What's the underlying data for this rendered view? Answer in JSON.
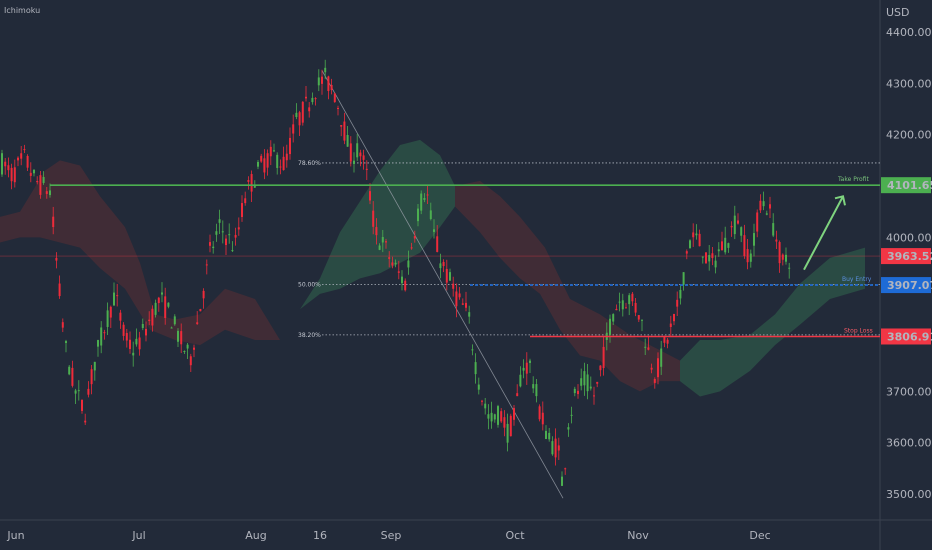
{
  "indicator_label": "Ichimoku",
  "currency": "USD",
  "colors": {
    "background": "#222a39",
    "up": "#4caf50",
    "down": "#ef2b3a",
    "take_profit": "#4caf50",
    "buy_entry": "#1e6bd6",
    "stop_loss": "#f23645",
    "current": "#f23645",
    "cloud_bull": "#2e5a48",
    "cloud_bear": "#5a2e34"
  },
  "chart_data": {
    "type": "candlestick",
    "x_ticks": [
      "Jun",
      "Jul",
      "Aug",
      "16",
      "Sep",
      "Oct",
      "Nov",
      "Dec"
    ],
    "y_ticks": [
      "4400.00",
      "4300.00",
      "4200.00",
      "4000.00",
      "3700.00",
      "3600.00",
      "3500.00"
    ],
    "ylim": [
      3450,
      4470
    ],
    "levels": {
      "take_profit": {
        "label": "Take Profit",
        "value": "4101.65"
      },
      "buy_entry": {
        "label": "Buy Entry",
        "value": "3907.07"
      },
      "stop_loss": {
        "label": "Stop Loss",
        "value": "3806.91"
      },
      "current": {
        "value": "3963.52"
      }
    },
    "fib_levels": [
      {
        "label": "78.60%",
        "value": 4145
      },
      {
        "label": "50.00%",
        "value": 3908
      },
      {
        "label": "38.20%",
        "value": 3810
      }
    ],
    "fib_line": {
      "from": {
        "date": "Aug 18",
        "value": 4325
      },
      "to": {
        "date": "Oct 13",
        "value": 3492
      }
    },
    "arrow": {
      "from": {
        "date": "Dec 2",
        "value": 3937
      },
      "to": {
        "date": "Dec 12",
        "value": 4080
      }
    },
    "price_path": [
      [
        0,
        4150
      ],
      [
        12,
        4120
      ],
      [
        25,
        4155
      ],
      [
        35,
        4110
      ],
      [
        50,
        4090
      ],
      [
        58,
        3920
      ],
      [
        65,
        3790
      ],
      [
        75,
        3700
      ],
      [
        85,
        3660
      ],
      [
        95,
        3760
      ],
      [
        105,
        3830
      ],
      [
        115,
        3890
      ],
      [
        125,
        3800
      ],
      [
        135,
        3780
      ],
      [
        150,
        3840
      ],
      [
        160,
        3880
      ],
      [
        170,
        3850
      ],
      [
        180,
        3800
      ],
      [
        190,
        3760
      ],
      [
        200,
        3860
      ],
      [
        210,
        3970
      ],
      [
        220,
        4020
      ],
      [
        235,
        3980
      ],
      [
        245,
        4080
      ],
      [
        255,
        4120
      ],
      [
        265,
        4150
      ],
      [
        275,
        4160
      ],
      [
        285,
        4140
      ],
      [
        295,
        4220
      ],
      [
        305,
        4250
      ],
      [
        315,
        4290
      ],
      [
        325,
        4310
      ],
      [
        335,
        4280
      ],
      [
        342,
        4230
      ],
      [
        350,
        4160
      ],
      [
        360,
        4170
      ],
      [
        368,
        4110
      ],
      [
        375,
        4010
      ],
      [
        385,
        3980
      ],
      [
        395,
        3940
      ],
      [
        405,
        3910
      ],
      [
        412,
        3990
      ],
      [
        418,
        4050
      ],
      [
        426,
        4100
      ],
      [
        432,
        4020
      ],
      [
        440,
        3960
      ],
      [
        448,
        3920
      ],
      [
        458,
        3880
      ],
      [
        468,
        3850
      ],
      [
        475,
        3760
      ],
      [
        482,
        3690
      ],
      [
        490,
        3640
      ],
      [
        500,
        3660
      ],
      [
        508,
        3620
      ],
      [
        515,
        3650
      ],
      [
        522,
        3750
      ],
      [
        530,
        3750
      ],
      [
        540,
        3660
      ],
      [
        550,
        3600
      ],
      [
        558,
        3590
      ],
      [
        563,
        3510
      ],
      [
        568,
        3640
      ],
      [
        575,
        3690
      ],
      [
        585,
        3720
      ],
      [
        595,
        3690
      ],
      [
        605,
        3780
      ],
      [
        612,
        3850
      ],
      [
        620,
        3880
      ],
      [
        630,
        3880
      ],
      [
        640,
        3850
      ],
      [
        648,
        3780
      ],
      [
        656,
        3730
      ],
      [
        665,
        3790
      ],
      [
        675,
        3840
      ],
      [
        680,
        3880
      ],
      [
        688,
        3990
      ],
      [
        695,
        4000
      ],
      [
        703,
        3980
      ],
      [
        710,
        3940
      ],
      [
        718,
        3970
      ],
      [
        728,
        4000
      ],
      [
        738,
        4040
      ],
      [
        745,
        3980
      ],
      [
        752,
        3960
      ],
      [
        760,
        4070
      ],
      [
        768,
        4060
      ],
      [
        775,
        4010
      ],
      [
        782,
        3950
      ],
      [
        790,
        3960
      ]
    ]
  }
}
